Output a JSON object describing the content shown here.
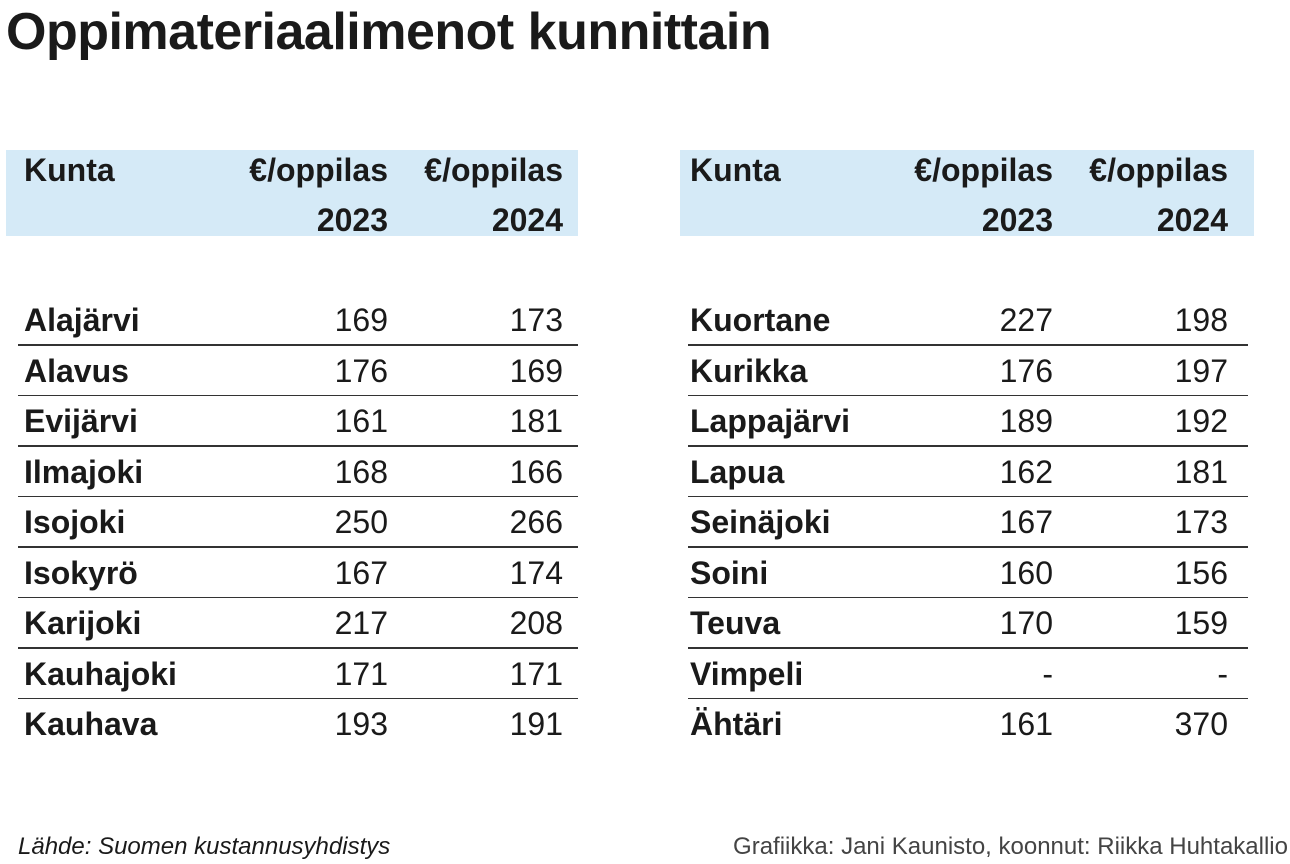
{
  "title": "Oppimateriaalimenot kunnittain",
  "tables": [
    {
      "header": [
        [
          "Kunta"
        ],
        [
          "€/oppilas",
          "2023"
        ],
        [
          "€/oppilas",
          "2024"
        ]
      ],
      "rows": [
        [
          "Alajärvi",
          169,
          173
        ],
        [
          "Alavus",
          176,
          169
        ],
        [
          "Evijärvi",
          161,
          181
        ],
        [
          "Ilmajoki",
          168,
          166
        ],
        [
          "Isojoki",
          250,
          266
        ],
        [
          "Isokyrö",
          167,
          174
        ],
        [
          "Karijoki",
          217,
          208
        ],
        [
          "Kauhajoki",
          171,
          171
        ],
        [
          "Kauhava",
          193,
          191
        ]
      ]
    },
    {
      "header": [
        [
          "Kunta"
        ],
        [
          "€/oppilas",
          "2023"
        ],
        [
          "€/oppilas",
          "2024"
        ]
      ],
      "rows": [
        [
          "Kuortane",
          227,
          198
        ],
        [
          "Kurikka",
          176,
          197
        ],
        [
          "Lappajärvi",
          189,
          192
        ],
        [
          "Lapua",
          162,
          181
        ],
        [
          "Seinäjoki",
          167,
          173
        ],
        [
          "Soini",
          160,
          156
        ],
        [
          "Teuva",
          170,
          159
        ],
        [
          "Vimpeli",
          "-",
          "-"
        ],
        [
          "Ähtäri",
          161,
          370
        ]
      ]
    }
  ],
  "footer": {
    "source": "Lähde: Suomen kustannusyhdistys",
    "credit": "Grafiikka: Jani Kaunisto, koonnut: Riikka Huhtakallio"
  }
}
